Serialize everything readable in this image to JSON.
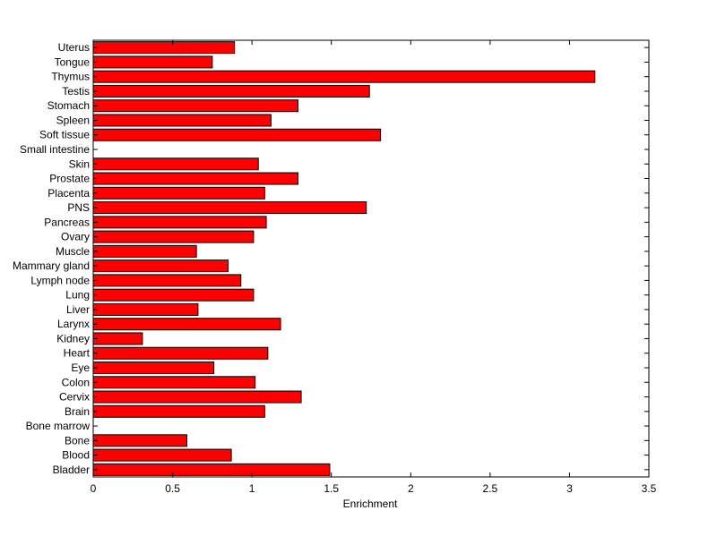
{
  "chart_data": {
    "type": "bar",
    "orientation": "horizontal",
    "xlabel": "Enrichment",
    "ylabel": "",
    "xlim": [
      0,
      3.5
    ],
    "xticks": [
      "0",
      "0.5",
      "1",
      "1.5",
      "2",
      "2.5",
      "3",
      "3.5"
    ],
    "bar_color": "#ff0000",
    "grid": false,
    "categories": [
      "Uterus",
      "Tongue",
      "Thymus",
      "Testis",
      "Stomach",
      "Spleen",
      "Soft tissue",
      "Small intestine",
      "Skin",
      "Prostate",
      "Placenta",
      "PNS",
      "Pancreas",
      "Ovary",
      "Muscle",
      "Mammary gland",
      "Lymph node",
      "Lung",
      "Liver",
      "Larynx",
      "Kidney",
      "Heart",
      "Eye",
      "Colon",
      "Cervix",
      "Brain",
      "Bone marrow",
      "Bone",
      "Blood",
      "Bladder"
    ],
    "values": [
      0.89,
      0.75,
      3.16,
      1.74,
      1.29,
      1.12,
      1.81,
      0,
      1.04,
      1.29,
      1.08,
      1.72,
      1.09,
      1.01,
      0.65,
      0.85,
      0.93,
      1.01,
      0.66,
      1.18,
      0.31,
      1.1,
      0.76,
      1.02,
      1.31,
      1.08,
      0,
      0.59,
      0.87,
      1.49
    ]
  }
}
